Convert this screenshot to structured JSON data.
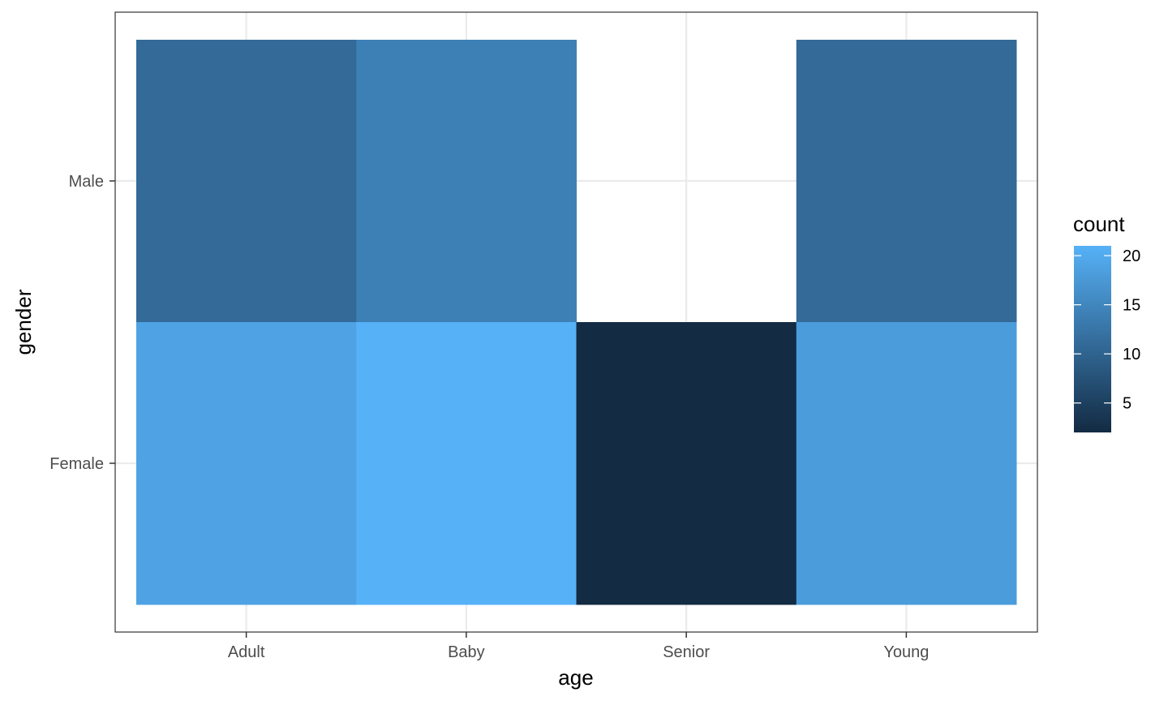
{
  "chart_data": {
    "type": "heatmap",
    "x_categories": [
      "Adult",
      "Baby",
      "Senior",
      "Young"
    ],
    "y_categories": [
      "Female",
      "Male"
    ],
    "cells": [
      {
        "x": "Adult",
        "y": "Male",
        "value": 11
      },
      {
        "x": "Baby",
        "y": "Male",
        "value": 14
      },
      {
        "x": "Young",
        "y": "Male",
        "value": 11
      },
      {
        "x": "Adult",
        "y": "Female",
        "value": 19
      },
      {
        "x": "Baby",
        "y": "Female",
        "value": 21
      },
      {
        "x": "Senior",
        "y": "Female",
        "value": 2
      },
      {
        "x": "Young",
        "y": "Female",
        "value": 18
      }
    ],
    "xlabel": "age",
    "ylabel": "gender",
    "legend": {
      "title": "count",
      "ticks": [
        5,
        10,
        15,
        20
      ],
      "range": [
        2,
        21
      ],
      "position": "right"
    },
    "grid": true,
    "colors": {
      "low": "#132B43",
      "high": "#56B1F7",
      "grid": "#ebebeb",
      "panel_border": "#333333"
    }
  }
}
